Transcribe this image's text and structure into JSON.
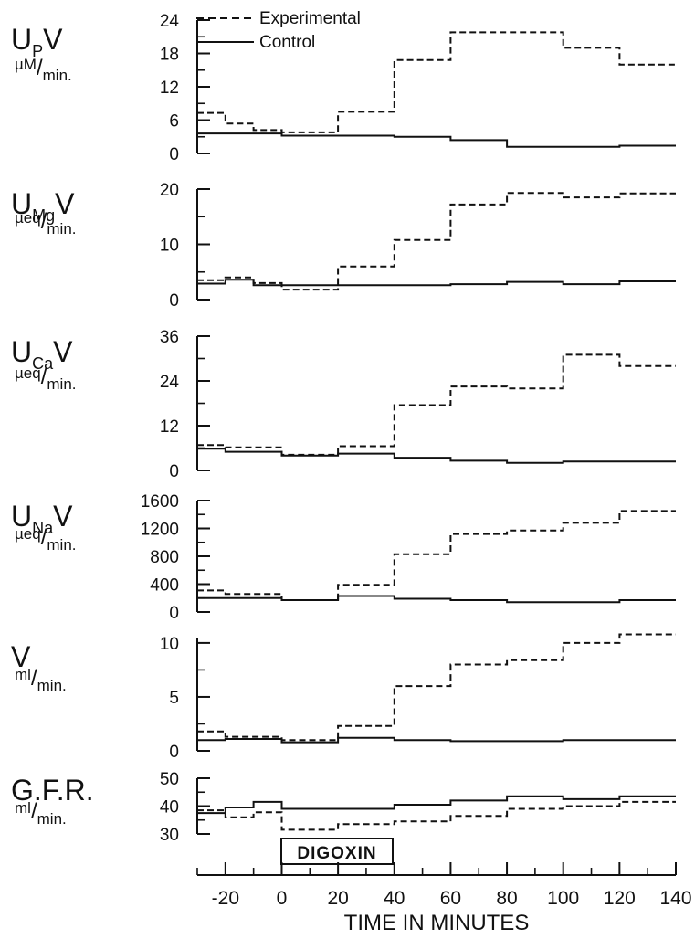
{
  "chart_data": {
    "type": "line",
    "xlabel": "TIME IN MINUTES",
    "xticks": [
      -20,
      0,
      20,
      40,
      60,
      80,
      100,
      120,
      140
    ],
    "xlim": [
      -30,
      140
    ],
    "legend": {
      "placement": "top-left",
      "entries": [
        "Experimental",
        "Control"
      ]
    },
    "annotation": "DIGOXIN",
    "colors": {
      "ink": "#111111",
      "background": "#ffffff"
    },
    "panels": [
      {
        "label_main": "U",
        "label_sub": "P",
        "label_tail": "V",
        "unit_num": "µM",
        "unit_den": "min.",
        "ylim": [
          0,
          24
        ],
        "yticks": [
          0,
          6,
          12,
          18,
          24
        ],
        "series": [
          {
            "name": "Experimental",
            "style": "dashed",
            "x": [
              -30,
              -20,
              -10,
              0,
              20,
              40,
              60,
              80,
              100,
              120,
              140
            ],
            "y": [
              7.3,
              5.4,
              4.2,
              3.8,
              7.5,
              16.8,
              21.8,
              21.8,
              19.0,
              16.0,
              16.0
            ]
          },
          {
            "name": "Control",
            "style": "solid",
            "x": [
              -30,
              0,
              20,
              40,
              60,
              80,
              100,
              120,
              140
            ],
            "y": [
              3.6,
              3.2,
              3.2,
              3.0,
              2.4,
              1.2,
              1.2,
              1.4,
              1.4
            ]
          }
        ]
      },
      {
        "label_main": "U",
        "label_sub": "Mg",
        "label_tail": "V",
        "unit_num": "µeq",
        "unit_den": "min.",
        "ylim": [
          0,
          20
        ],
        "yticks": [
          0,
          10,
          20
        ],
        "series": [
          {
            "name": "Experimental",
            "style": "dashed",
            "x": [
              -30,
              -20,
              -10,
              0,
              20,
              40,
              60,
              80,
              100,
              120,
              140
            ],
            "y": [
              3.5,
              4.0,
              3.0,
              1.8,
              6.0,
              10.8,
              17.2,
              19.3,
              18.5,
              19.2,
              19.2
            ]
          },
          {
            "name": "Control",
            "style": "solid",
            "x": [
              -30,
              -20,
              -10,
              0,
              20,
              40,
              60,
              80,
              100,
              120,
              140
            ],
            "y": [
              2.9,
              3.6,
              2.6,
              2.6,
              2.6,
              2.6,
              2.8,
              3.2,
              2.8,
              3.3,
              3.3
            ]
          }
        ]
      },
      {
        "label_main": "U",
        "label_sub": "Ca",
        "label_tail": "V",
        "unit_num": "µeq",
        "unit_den": "min.",
        "ylim": [
          0,
          36
        ],
        "yticks": [
          0,
          12,
          24,
          36
        ],
        "series": [
          {
            "name": "Experimental",
            "style": "dashed",
            "x": [
              -30,
              -20,
              0,
              20,
              40,
              60,
              80,
              100,
              120,
              140
            ],
            "y": [
              6.8,
              6.2,
              4.2,
              6.5,
              17.5,
              22.5,
              22.0,
              31.0,
              28.0,
              28.0
            ]
          },
          {
            "name": "Control",
            "style": "solid",
            "x": [
              -30,
              -20,
              0,
              20,
              40,
              60,
              80,
              100,
              120,
              140
            ],
            "y": [
              5.8,
              5.0,
              4.0,
              4.5,
              3.4,
              2.6,
              2.0,
              2.4,
              2.4,
              2.4
            ]
          }
        ]
      },
      {
        "label_main": "U",
        "label_sub": "Na",
        "label_tail": "V",
        "unit_num": "µeq",
        "unit_den": "min.",
        "ylim": [
          0,
          1600
        ],
        "yticks": [
          0,
          400,
          800,
          1200,
          1600
        ],
        "series": [
          {
            "name": "Experimental",
            "style": "dashed",
            "x": [
              -30,
              -20,
              0,
              20,
              40,
              60,
              80,
              100,
              120,
              140
            ],
            "y": [
              310,
              260,
              170,
              390,
              830,
              1120,
              1170,
              1280,
              1450,
              1450
            ]
          },
          {
            "name": "Control",
            "style": "solid",
            "x": [
              -30,
              0,
              20,
              40,
              60,
              80,
              100,
              120,
              140
            ],
            "y": [
              200,
              170,
              230,
              190,
              170,
              140,
              140,
              170,
              170
            ]
          }
        ]
      },
      {
        "label_main": "V",
        "label_sub": "",
        "label_tail": "",
        "unit_num": "ml",
        "unit_den": "min.",
        "ylim": [
          0,
          10.5
        ],
        "yticks": [
          0,
          5,
          10
        ],
        "series": [
          {
            "name": "Experimental",
            "style": "dashed",
            "x": [
              -30,
              -20,
              0,
              20,
              40,
              60,
              80,
              100,
              120,
              140
            ],
            "y": [
              1.8,
              1.3,
              1.0,
              2.3,
              6.0,
              8.0,
              8.4,
              10.0,
              10.8,
              10.8
            ]
          },
          {
            "name": "Control",
            "style": "solid",
            "x": [
              -30,
              -20,
              0,
              20,
              40,
              60,
              80,
              100,
              120,
              140
            ],
            "y": [
              1.0,
              1.1,
              0.8,
              1.2,
              1.0,
              0.9,
              0.9,
              1.0,
              1.0,
              1.0
            ]
          }
        ]
      },
      {
        "label_main": "G.F.R.",
        "label_sub": "",
        "label_tail": "",
        "unit_num": "ml",
        "unit_den": "min.",
        "ylim": [
          30,
          50
        ],
        "yticks": [
          30,
          40,
          50
        ],
        "series": [
          {
            "name": "Experimental",
            "style": "dashed",
            "x": [
              -30,
              -20,
              -10,
              0,
              20,
              40,
              60,
              80,
              100,
              120,
              140
            ],
            "y": [
              38.5,
              36.0,
              37.8,
              31.5,
              33.5,
              34.5,
              36.5,
              39.0,
              40.0,
              41.5,
              41.5
            ]
          },
          {
            "name": "Control",
            "style": "solid",
            "x": [
              -30,
              -20,
              -10,
              0,
              20,
              40,
              60,
              80,
              100,
              120,
              140
            ],
            "y": [
              37.5,
              39.5,
              41.5,
              39.0,
              39.0,
              40.5,
              42.0,
              43.5,
              42.5,
              43.5,
              43.5
            ]
          }
        ]
      }
    ]
  }
}
